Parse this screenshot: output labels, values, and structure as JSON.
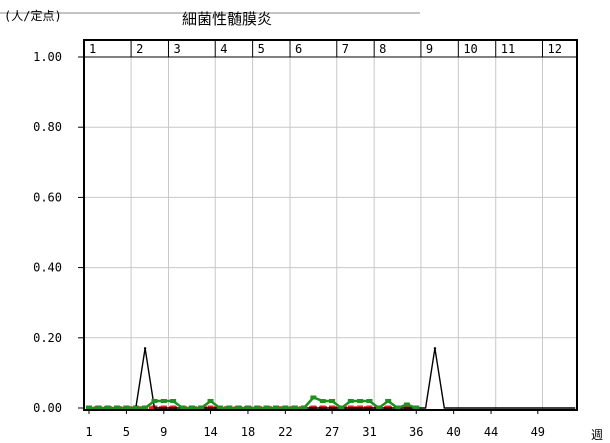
{
  "chart_data": {
    "type": "line",
    "title": "細菌性髄膜炎",
    "ylabel": "(人/定点)",
    "xlabel": "週",
    "ylim": [
      0,
      1.0
    ],
    "xlim": [
      1,
      53
    ],
    "y_ticks": [
      "1.00",
      "0.80",
      "0.60",
      "0.40",
      "0.20",
      "0.00"
    ],
    "y_tick_values": [
      1.0,
      0.8,
      0.6,
      0.4,
      0.2,
      0.0
    ],
    "x_ticks": [
      1,
      5,
      9,
      14,
      18,
      22,
      27,
      31,
      36,
      40,
      44,
      49
    ],
    "months": [
      "1",
      "2",
      "3",
      "4",
      "5",
      "6",
      "7",
      "8",
      "9",
      "10",
      "11",
      "12"
    ],
    "month_start_weeks": [
      1,
      5,
      9,
      14,
      18,
      22,
      27,
      31,
      36,
      40,
      44,
      49
    ],
    "grid": true,
    "series": [
      {
        "color": "#000000",
        "points": [
          [
            1,
            0
          ],
          [
            2,
            0
          ],
          [
            3,
            0
          ],
          [
            4,
            0
          ],
          [
            5,
            0
          ],
          [
            6,
            0
          ],
          [
            7,
            0.17
          ],
          [
            8,
            0
          ],
          [
            9,
            0
          ],
          [
            10,
            0
          ],
          [
            11,
            0
          ],
          [
            12,
            0
          ],
          [
            13,
            0
          ],
          [
            14,
            0
          ],
          [
            15,
            0
          ],
          [
            16,
            0
          ],
          [
            17,
            0
          ],
          [
            18,
            0
          ],
          [
            19,
            0
          ],
          [
            20,
            0
          ],
          [
            21,
            0
          ],
          [
            22,
            0
          ],
          [
            23,
            0
          ],
          [
            24,
            0
          ],
          [
            25,
            0
          ],
          [
            26,
            0
          ],
          [
            27,
            0
          ],
          [
            28,
            0
          ],
          [
            29,
            0
          ],
          [
            30,
            0
          ],
          [
            31,
            0
          ],
          [
            32,
            0
          ],
          [
            33,
            0
          ],
          [
            34,
            0
          ],
          [
            35,
            0
          ],
          [
            36,
            0
          ],
          [
            37,
            0
          ],
          [
            38,
            0.17
          ],
          [
            39,
            0
          ],
          [
            40,
            0
          ],
          [
            41,
            0
          ],
          [
            42,
            0
          ],
          [
            43,
            0
          ],
          [
            44,
            0
          ],
          [
            45,
            0
          ],
          [
            46,
            0
          ],
          [
            47,
            0
          ],
          [
            48,
            0
          ],
          [
            49,
            0
          ],
          [
            50,
            0
          ],
          [
            51,
            0
          ],
          [
            52,
            0
          ],
          [
            53,
            0
          ]
        ]
      },
      {
        "color": "#1f8f1f",
        "points": [
          [
            1,
            0
          ],
          [
            2,
            0
          ],
          [
            3,
            0
          ],
          [
            4,
            0
          ],
          [
            5,
            0
          ],
          [
            6,
            0
          ],
          [
            7,
            0
          ],
          [
            8,
            0.02
          ],
          [
            9,
            0.02
          ],
          [
            10,
            0.02
          ],
          [
            11,
            0
          ],
          [
            12,
            0
          ],
          [
            13,
            0
          ],
          [
            14,
            0.02
          ],
          [
            15,
            0
          ],
          [
            16,
            0
          ],
          [
            17,
            0
          ],
          [
            18,
            0
          ],
          [
            19,
            0
          ],
          [
            20,
            0
          ],
          [
            21,
            0
          ],
          [
            22,
            0
          ],
          [
            23,
            0
          ],
          [
            24,
            0
          ],
          [
            25,
            0.03
          ],
          [
            26,
            0.02
          ],
          [
            27,
            0.02
          ],
          [
            28,
            0
          ],
          [
            29,
            0.02
          ],
          [
            30,
            0.02
          ],
          [
            31,
            0.02
          ],
          [
            32,
            0
          ],
          [
            33,
            0.02
          ],
          [
            34,
            0
          ],
          [
            35,
            0.01
          ],
          [
            36,
            0
          ]
        ]
      },
      {
        "color": "#e02020",
        "points": [
          [
            1,
            0
          ],
          [
            2,
            0
          ],
          [
            3,
            0
          ],
          [
            4,
            0
          ],
          [
            5,
            0
          ],
          [
            6,
            0
          ],
          [
            7,
            0
          ],
          [
            8,
            0
          ],
          [
            9,
            0
          ],
          [
            10,
            0
          ],
          [
            11,
            0
          ],
          [
            12,
            0
          ],
          [
            13,
            0
          ],
          [
            14,
            0
          ],
          [
            15,
            0
          ],
          [
            16,
            0
          ],
          [
            17,
            0
          ],
          [
            18,
            0
          ],
          [
            19,
            0
          ],
          [
            20,
            0
          ],
          [
            21,
            0
          ],
          [
            22,
            0
          ],
          [
            23,
            0
          ],
          [
            24,
            0
          ],
          [
            25,
            0
          ],
          [
            26,
            0
          ],
          [
            27,
            0
          ],
          [
            28,
            0
          ],
          [
            29,
            0
          ],
          [
            30,
            0
          ],
          [
            31,
            0
          ],
          [
            32,
            0
          ],
          [
            33,
            0
          ],
          [
            34,
            0
          ],
          [
            35,
            0
          ],
          [
            36,
            0
          ]
        ]
      }
    ]
  }
}
